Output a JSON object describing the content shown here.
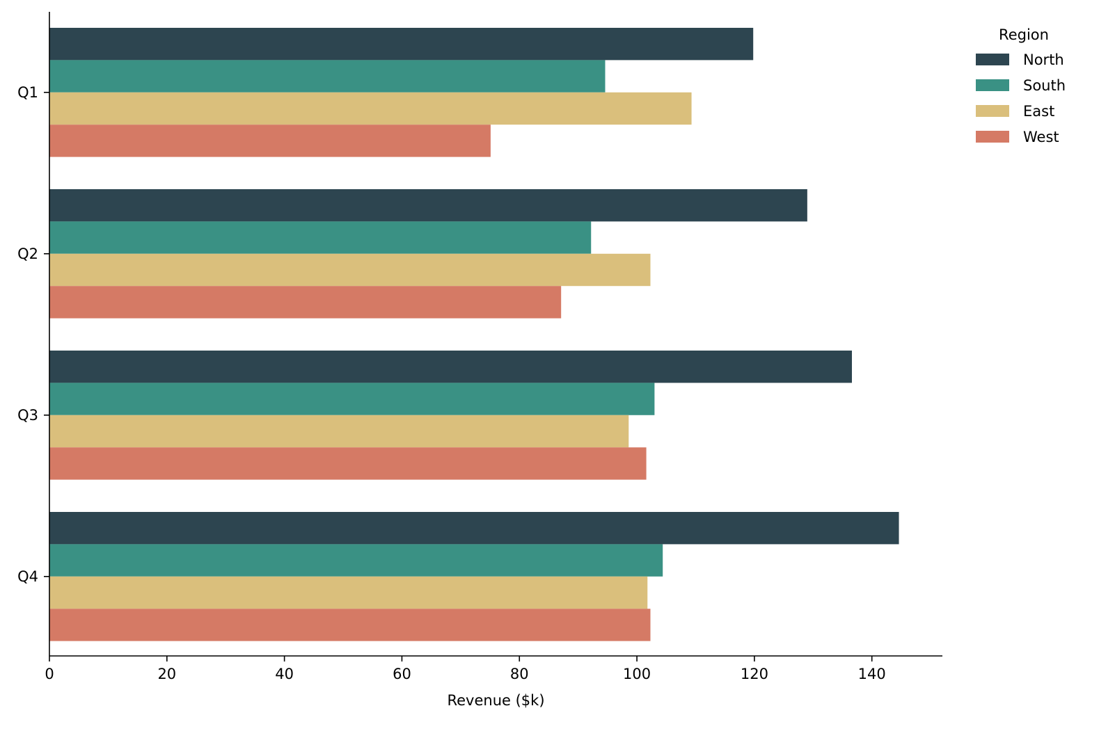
{
  "chart_data": {
    "type": "bar",
    "orientation": "horizontal",
    "title": "",
    "xlabel": "Revenue ($k)",
    "ylabel": "",
    "categories": [
      "Q1",
      "Q2",
      "Q3",
      "Q4"
    ],
    "xlim": [
      0,
      152
    ],
    "xticks": [
      "0",
      "20",
      "40",
      "60",
      "80",
      "100",
      "120",
      "140"
    ],
    "grid": false,
    "legend": {
      "title": "Region",
      "placement": "top-right, outside plot"
    },
    "series": [
      {
        "name": "North",
        "color": "#2d4550",
        "values": [
          119.8,
          129.0,
          136.6,
          144.6
        ]
      },
      {
        "name": "South",
        "color": "#3a9184",
        "values": [
          94.6,
          92.2,
          103.0,
          104.4
        ]
      },
      {
        "name": "East",
        "color": "#dabf7c",
        "values": [
          109.3,
          102.3,
          98.6,
          101.8
        ]
      },
      {
        "name": "West",
        "color": "#d57a65",
        "values": [
          75.1,
          87.1,
          101.6,
          102.3
        ]
      }
    ]
  }
}
